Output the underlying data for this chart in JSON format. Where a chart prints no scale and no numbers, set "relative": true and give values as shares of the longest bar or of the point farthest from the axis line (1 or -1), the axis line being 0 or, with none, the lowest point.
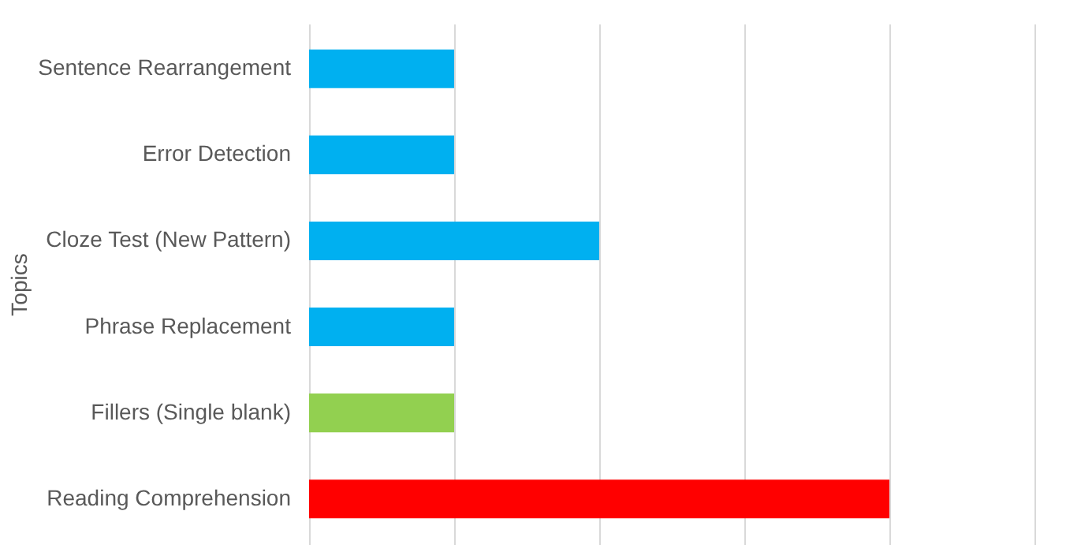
{
  "chart_data": {
    "type": "bar",
    "orientation": "horizontal",
    "relative": true,
    "ylabel": "Topics",
    "grid": "x",
    "categories": [
      "Sentence Rearrangement",
      "Error Detection",
      "Cloze Test (New Pattern)",
      "Phrase Replacement",
      "Fillers (Single blank)",
      "Reading Comprehension"
    ],
    "values": [
      0.25,
      0.25,
      0.5,
      0.25,
      0.25,
      1
    ],
    "colors": [
      "#00b0f0",
      "#00b0f0",
      "#00b0f0",
      "#00b0f0",
      "#92d050",
      "#ff0000"
    ]
  }
}
